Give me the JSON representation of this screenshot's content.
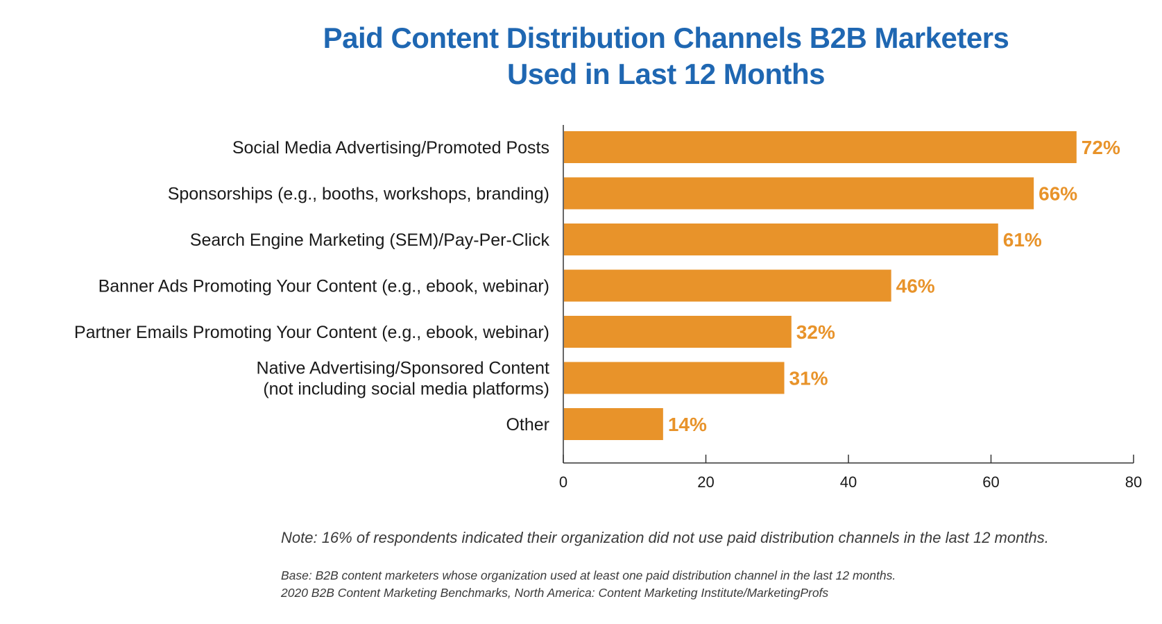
{
  "chart_data": {
    "type": "bar",
    "orientation": "horizontal",
    "title_lines": [
      "Paid Content Distribution Channels B2B Marketers",
      "Used in Last 12 Months"
    ],
    "categories": [
      [
        "Social Media Advertising/Promoted Posts"
      ],
      [
        "Sponsorships (e.g., booths, workshops, branding)"
      ],
      [
        "Search Engine Marketing (SEM)/Pay-Per-Click"
      ],
      [
        "Banner Ads Promoting Your Content (e.g., ebook, webinar)"
      ],
      [
        "Partner Emails Promoting Your Content (e.g., ebook, webinar)"
      ],
      [
        "Native Advertising/Sponsored Content",
        "(not including social media platforms)"
      ],
      [
        "Other"
      ]
    ],
    "values": [
      72,
      66,
      61,
      46,
      32,
      31,
      14
    ],
    "value_labels": [
      "72%",
      "66%",
      "61%",
      "46%",
      "32%",
      "31%",
      "14%"
    ],
    "xlim": [
      0,
      80
    ],
    "xticks": [
      0,
      20,
      40,
      60,
      80
    ],
    "grid": false,
    "bar_color": "#e8932a",
    "label_color": "#e8932a"
  },
  "notes": {
    "note": "Note: 16% of respondents indicated their organization did not use paid distribution channels in the last 12 months.",
    "base": "Base: B2B content marketers whose organization used at least one paid distribution channel in the last 12 months.",
    "source": "2020 B2B Content Marketing Benchmarks, North America: Content Marketing Institute/MarketingProfs"
  },
  "colors": {
    "title": "#1f67b2",
    "bar": "#e8932a"
  }
}
